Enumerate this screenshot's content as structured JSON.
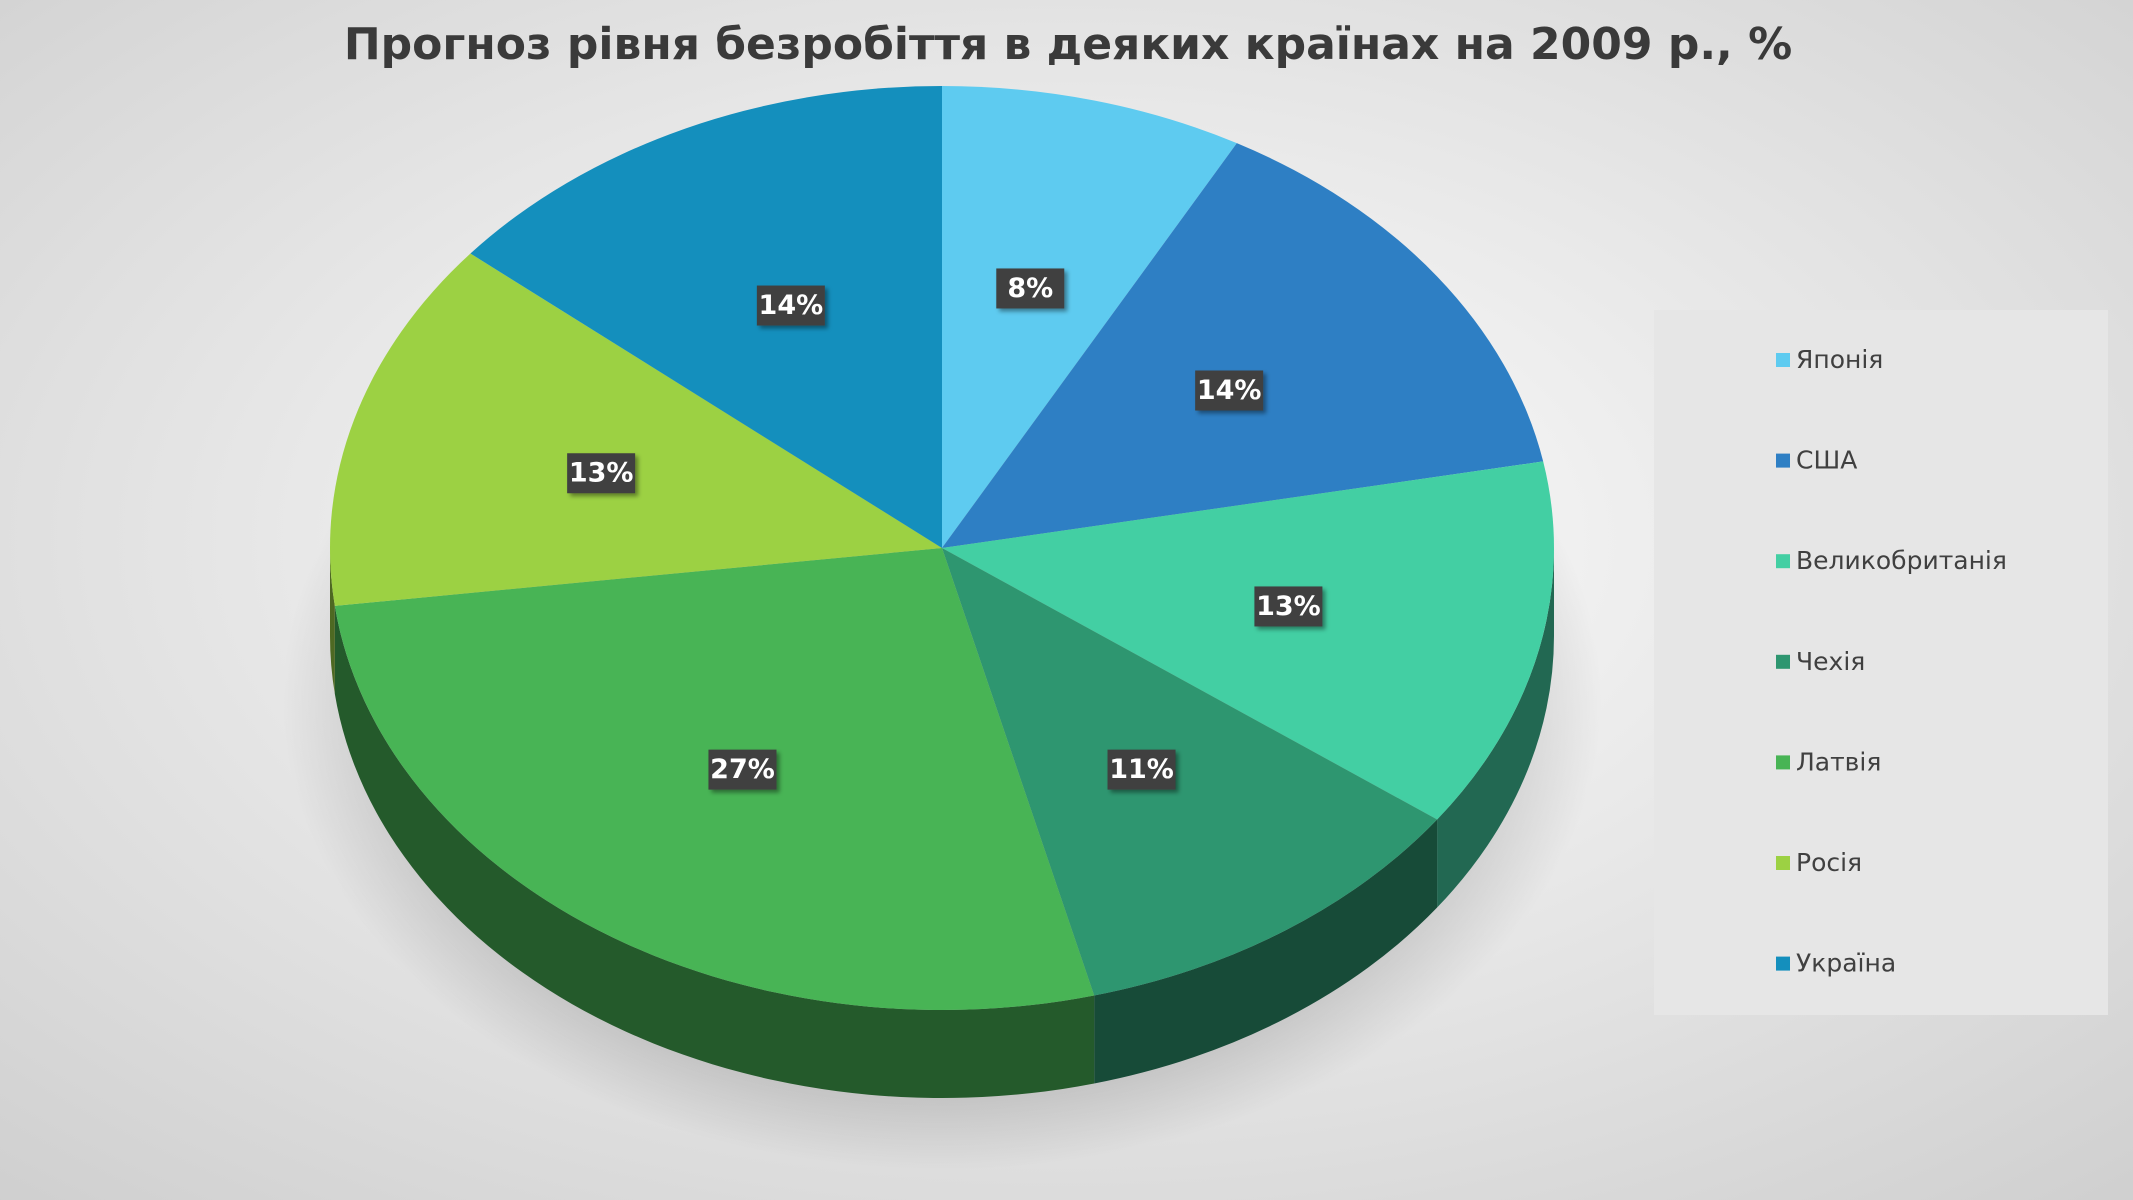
{
  "chart_data": {
    "type": "pie",
    "title": "Прогноз рівня безробіття в деяких країнах на 2009 р., %",
    "categories": [
      "Японія",
      "США",
      "Великобританія",
      "Чехія",
      "Латвія",
      "Росія",
      "Україна"
    ],
    "values": [
      8,
      14,
      13,
      11,
      27,
      13,
      14
    ],
    "value_labels": [
      "8%",
      "14%",
      "13%",
      "11%",
      "27%",
      "13%",
      "14%"
    ],
    "colors": [
      "#5ecbf0",
      "#2e7fc4",
      "#43cfa3",
      "#2e9670",
      "#48b455",
      "#9cd143",
      "#148fbd"
    ],
    "legend": "right"
  }
}
